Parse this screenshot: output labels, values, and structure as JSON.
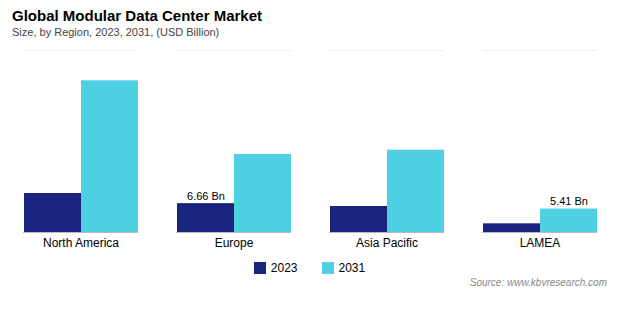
{
  "chart_data": {
    "type": "bar",
    "title": "Global Modular Data Center Market",
    "subtitle": "Size, by Region, 2023, 2031, (USD Billion)",
    "source": "Source: www.kbvresearch.com",
    "categories": [
      "North America",
      "Europe",
      "Asia Pacific",
      "LAMEA"
    ],
    "series": [
      {
        "name": "2023",
        "color": "#1a237e",
        "values": [
          9.0,
          6.66,
          6.0,
          2.0
        ],
        "value_labels": [
          null,
          "6.66 Bn",
          null,
          null
        ]
      },
      {
        "name": "2031",
        "color": "#4dd0e1",
        "values": [
          35.0,
          18.0,
          19.0,
          5.41
        ],
        "value_labels": [
          null,
          null,
          null,
          "5.41 Bn"
        ]
      }
    ],
    "ylim": [
      0,
      42
    ],
    "grid": false,
    "legend": "bottom",
    "tick_labels": "x"
  }
}
